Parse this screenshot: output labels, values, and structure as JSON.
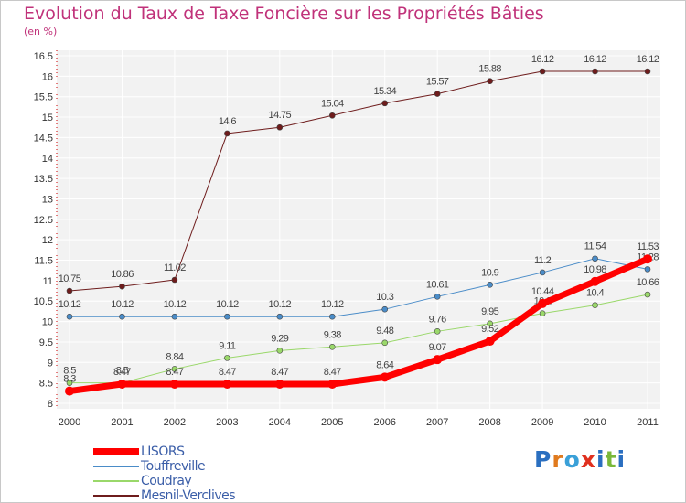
{
  "header": {
    "title": "Evolution du Taux de Taxe Foncière sur les Propriétés Bâties",
    "unit": "(en %)"
  },
  "logo": {
    "text": "Proxiti",
    "letters": [
      "P",
      "r",
      "o",
      "x",
      "i",
      "t",
      "i"
    ],
    "colors": [
      "#2a6fc0",
      "#e07a1e",
      "#3aa0d8",
      "#e0301e",
      "#2a6fc0",
      "#7ab83a",
      "#2a6fc0"
    ]
  },
  "chart_data": {
    "type": "line",
    "title": "Evolution du Taux de Taxe Foncière sur les Propriétés Bâties",
    "ylabel": "(en %)",
    "xlabel": "",
    "x": [
      "2000",
      "2001",
      "2002",
      "2003",
      "2004",
      "2005",
      "2006",
      "2007",
      "2008",
      "2009",
      "2010",
      "2011"
    ],
    "ylim": [
      8,
      16.5
    ],
    "yticks": [
      "8",
      "8.5",
      "9",
      "9.5",
      "10",
      "10.5",
      "11",
      "11.5",
      "12",
      "12.5",
      "13",
      "13.5",
      "14",
      "14.5",
      "15",
      "15.5",
      "16",
      "16.5"
    ],
    "grid": true,
    "legend": "bottom-left",
    "series": [
      {
        "name": "Mesnil-Verclives",
        "color": "#6e1c1c",
        "width": 1,
        "marker": 3,
        "values": [
          10.75,
          10.86,
          11.02,
          14.6,
          14.75,
          15.04,
          15.34,
          15.57,
          15.88,
          16.12,
          16.12,
          16.12
        ],
        "labels": [
          "10.75",
          "10.86",
          "11.02",
          "14.6",
          "14.75",
          "15.04",
          "15.34",
          "15.57",
          "15.88",
          "16.12",
          "16.12",
          "16.12"
        ]
      },
      {
        "name": "Touffreville",
        "color": "#4a8cc8",
        "width": 1,
        "marker": 3,
        "values": [
          10.12,
          10.12,
          10.12,
          10.12,
          10.12,
          10.12,
          10.3,
          10.61,
          10.9,
          11.2,
          11.54,
          11.28
        ],
        "labels": [
          "10.12",
          "10.12",
          "10.12",
          "10.12",
          "10.12",
          "10.12",
          "10.3",
          "10.61",
          "10.9",
          "11.2",
          "11.54",
          "11.28"
        ]
      },
      {
        "name": "Coudray",
        "color": "#9ad86a",
        "width": 1,
        "marker": 3,
        "values": [
          8.5,
          8.5,
          8.84,
          9.11,
          9.29,
          9.38,
          9.48,
          9.76,
          9.95,
          10.2,
          10.4,
          10.66
        ],
        "labels": [
          "8.5",
          "8.5",
          "8.84",
          "9.11",
          "9.29",
          "9.38",
          "9.48",
          "9.76",
          "9.95",
          "10.2",
          "10.4",
          "10.66"
        ]
      },
      {
        "name": "LISORS",
        "color": "#ff0000",
        "width": 7,
        "marker": 5,
        "values": [
          8.3,
          8.47,
          8.47,
          8.47,
          8.47,
          8.47,
          8.64,
          9.07,
          9.52,
          10.44,
          10.98,
          11.53
        ],
        "labels": [
          "8.3",
          "8.47",
          "8.47",
          "8.47",
          "8.47",
          "8.47",
          "8.64",
          "9.07",
          "9.52",
          "10.44",
          "10.98",
          "11.53"
        ]
      }
    ],
    "legend_order": [
      "LISORS",
      "Touffreville",
      "Coudray",
      "Mesnil-Verclives"
    ]
  }
}
